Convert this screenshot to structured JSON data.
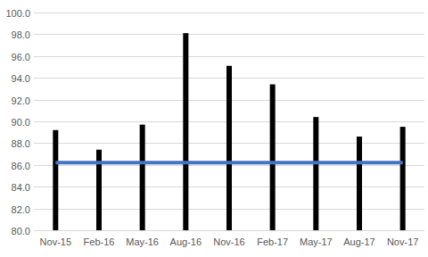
{
  "chart_data": {
    "type": "bar",
    "categories": [
      "Nov-15",
      "Feb-16",
      "May-16",
      "Aug-16",
      "Nov-16",
      "Feb-17",
      "May-17",
      "Aug-17",
      "Nov-17"
    ],
    "series": [
      {
        "type": "bar",
        "color": "#000000",
        "values": [
          89.2,
          87.4,
          89.7,
          98.1,
          95.1,
          93.4,
          90.4,
          88.6,
          89.5
        ]
      },
      {
        "type": "line",
        "color": "#4472c4",
        "values": [
          86.2,
          86.2,
          86.2,
          86.2,
          86.2,
          86.2,
          86.2,
          86.2,
          86.2
        ]
      }
    ],
    "ylim": [
      80,
      100
    ],
    "yticks": [
      {
        "value": 80,
        "label": "80.0"
      },
      {
        "value": 82,
        "label": "82.0"
      },
      {
        "value": 84,
        "label": "84.0"
      },
      {
        "value": 86,
        "label": "86.0"
      },
      {
        "value": 88,
        "label": "88.0"
      },
      {
        "value": 90,
        "label": "90.0"
      },
      {
        "value": 92,
        "label": "92.0"
      },
      {
        "value": 94,
        "label": "94.0"
      },
      {
        "value": 96,
        "label": "96.0"
      },
      {
        "value": 98,
        "label": "98.0"
      },
      {
        "value": 100,
        "label": "100.0"
      }
    ],
    "grid": true
  }
}
